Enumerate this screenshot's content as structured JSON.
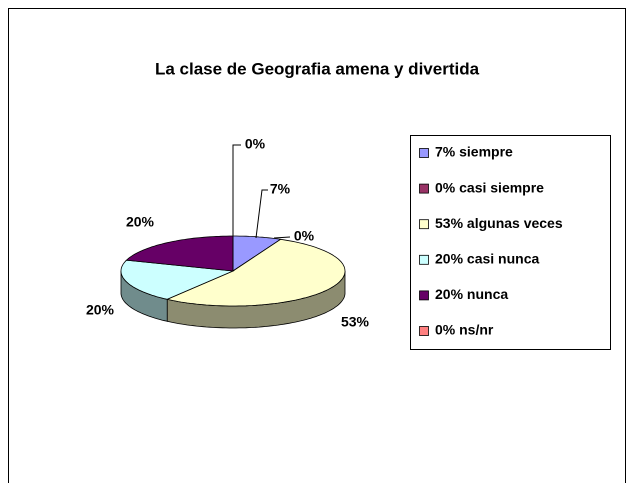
{
  "chart_data": {
    "type": "pie",
    "title": "La clase de Geografia amena y divertida",
    "categories": [
      "7% siempre",
      "0% casi siempre",
      "53% algunas veces",
      "20% casi nunca",
      "20% nunca",
      "0% ns/nr"
    ],
    "values": [
      7,
      0,
      53,
      20,
      20,
      0
    ],
    "value_labels": [
      "7%",
      "0%",
      "53%",
      "20%",
      "20%",
      "0%"
    ],
    "colors": [
      "#9999ff",
      "#993366",
      "#ffffcc",
      "#ccffff",
      "#660066",
      "#ff8080"
    ],
    "legend": "right"
  }
}
